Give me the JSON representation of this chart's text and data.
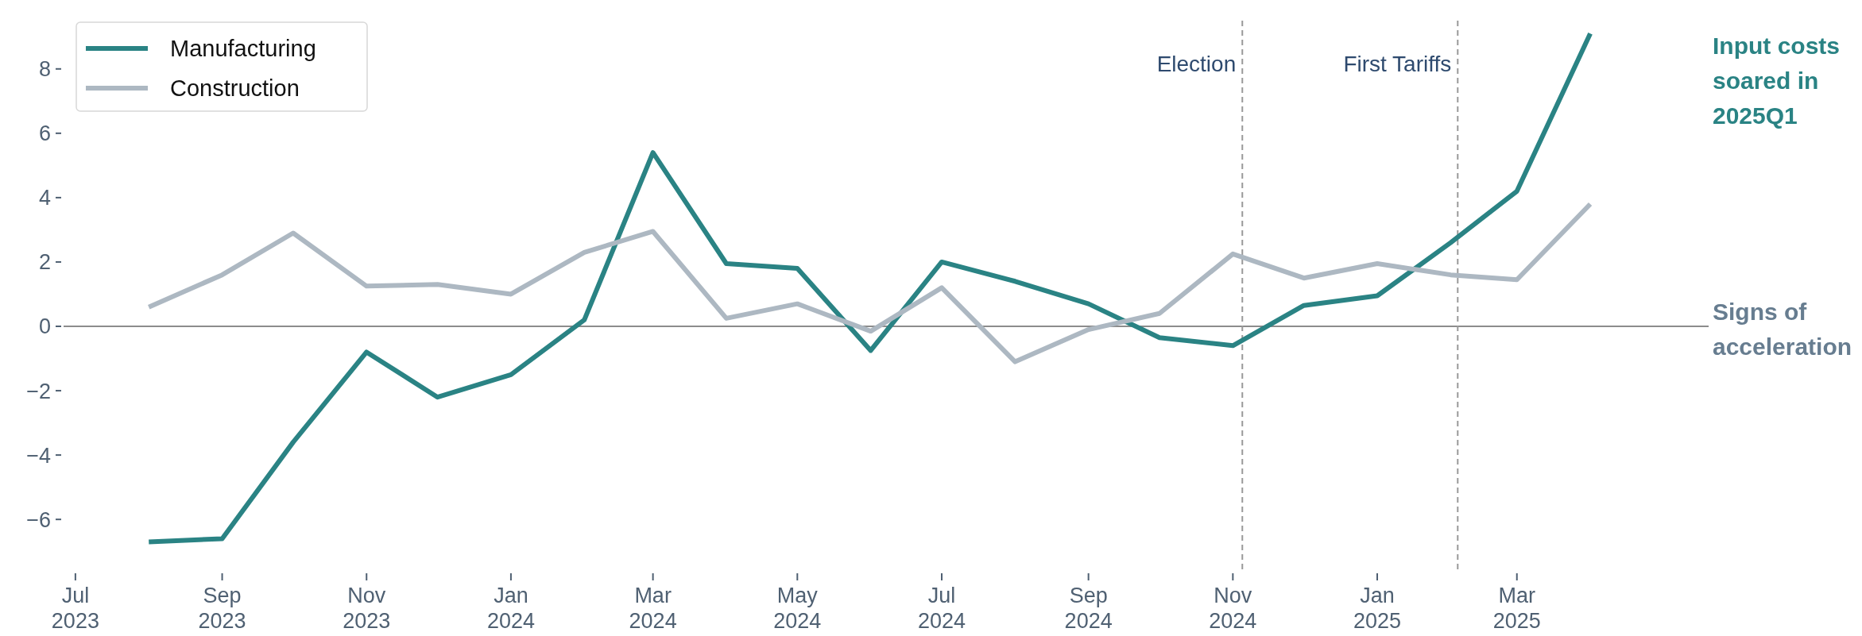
{
  "chart_data": {
    "type": "line",
    "x": [
      "2023-08-01",
      "2023-09-01",
      "2023-10-01",
      "2023-11-01",
      "2023-12-01",
      "2024-01-01",
      "2024-02-01",
      "2024-03-01",
      "2024-04-01",
      "2024-05-01",
      "2024-06-01",
      "2024-07-01",
      "2024-08-01",
      "2024-09-01",
      "2024-10-01",
      "2024-11-01",
      "2024-12-01",
      "2025-01-01",
      "2025-02-01",
      "2025-03-01",
      "2025-04-01"
    ],
    "series": [
      {
        "name": "Manufacturing",
        "color": "#2a8384",
        "values": [
          -6.7,
          -6.6,
          -3.6,
          -0.8,
          -2.2,
          -1.5,
          0.2,
          5.4,
          1.95,
          1.8,
          -0.75,
          2.0,
          1.4,
          0.7,
          -0.35,
          -0.6,
          0.65,
          0.95,
          2.6,
          4.2,
          9.1
        ]
      },
      {
        "name": "Construction",
        "color": "#adb8c2",
        "values": [
          0.6,
          1.6,
          2.9,
          1.25,
          1.3,
          1.0,
          2.3,
          2.95,
          0.25,
          0.7,
          -0.15,
          1.2,
          -1.1,
          -0.1,
          0.4,
          2.25,
          1.5,
          1.95,
          1.6,
          1.45,
          3.8
        ]
      }
    ],
    "xlim": [
      "2023-06-26",
      "2025-05-21"
    ],
    "xticks": [
      {
        "value": "2023-07-01",
        "label": "Jul\n2023"
      },
      {
        "value": "2023-09-01",
        "label": "Sep\n2023"
      },
      {
        "value": "2023-11-01",
        "label": "Nov\n2023"
      },
      {
        "value": "2024-01-01",
        "label": "Jan\n2024"
      },
      {
        "value": "2024-03-01",
        "label": "Mar\n2024"
      },
      {
        "value": "2024-05-01",
        "label": "May\n2024"
      },
      {
        "value": "2024-07-01",
        "label": "Jul\n2024"
      },
      {
        "value": "2024-09-01",
        "label": "Sep\n2024"
      },
      {
        "value": "2024-11-01",
        "label": "Nov\n2024"
      },
      {
        "value": "2025-01-01",
        "label": "Jan\n2025"
      },
      {
        "value": "2025-03-01",
        "label": "Mar\n2025"
      }
    ],
    "ylim": [
      -7.6,
      9.5
    ],
    "yticks": [
      {
        "value": -6,
        "label": "−6"
      },
      {
        "value": -4,
        "label": "−4"
      },
      {
        "value": -2,
        "label": "−2"
      },
      0,
      2,
      4,
      6,
      8
    ],
    "ref_lines": [
      {
        "axis": "y",
        "value": 0,
        "color": "#8c8c8c",
        "line_style": "solid"
      },
      {
        "axis": "x",
        "value": "2024-11-05",
        "label": "Election",
        "color": "#999999",
        "line_style": "dashed"
      },
      {
        "axis": "x",
        "value": "2025-02-04",
        "label": "First Tariffs",
        "color": "#999999",
        "line_style": "dashed"
      }
    ],
    "annotations": [
      "Input costs soared in 2025Q1",
      "Signs of acceleration"
    ],
    "legend": "top left",
    "grid": false,
    "marker": "none",
    "line_style": "solid"
  }
}
